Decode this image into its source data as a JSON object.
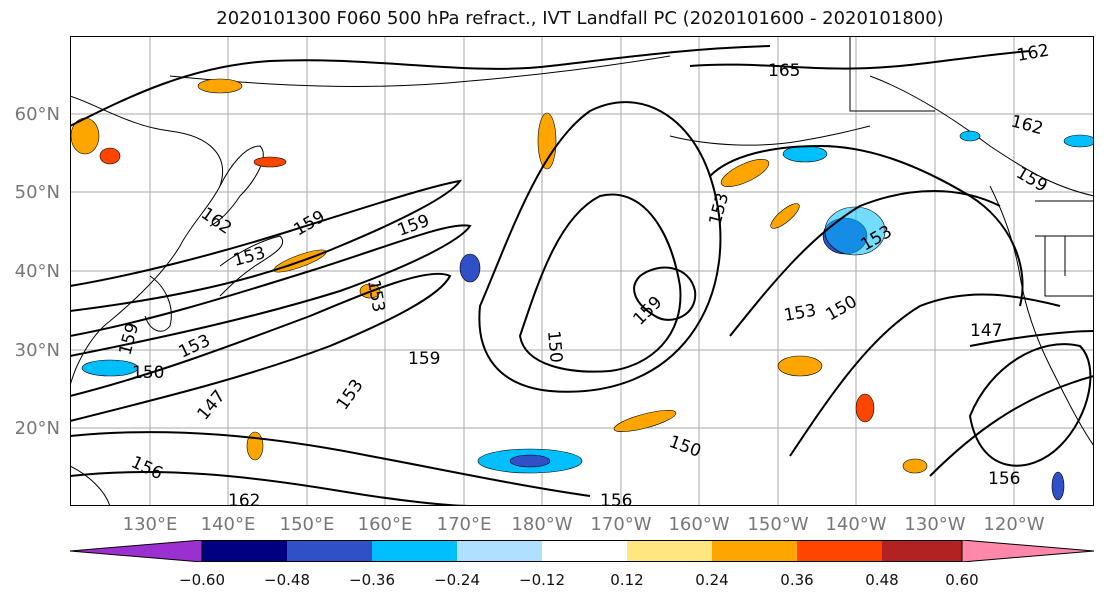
{
  "title": "2020101300 F060 500 hPa refract., IVT Landfall PC (2020101600 - 2020101800)",
  "lat_labels": [
    "60°N",
    "50°N",
    "40°N",
    "30°N",
    "20°N"
  ],
  "lon_labels": [
    "130°E",
    "140°E",
    "150°E",
    "160°E",
    "170°E",
    "180°W",
    "170°W",
    "160°W",
    "150°W",
    "140°W",
    "130°W",
    "120°W"
  ],
  "contour_labels": [
    "165",
    "162",
    "162",
    "162",
    "159",
    "159",
    "159",
    "159",
    "159",
    "159",
    "156",
    "156",
    "156",
    "153",
    "153",
    "153",
    "153",
    "153",
    "153",
    "153",
    "150",
    "150",
    "150",
    "150",
    "147",
    "147",
    "162"
  ],
  "colorbar": {
    "ticks": [
      "−0.60",
      "−0.48",
      "−0.36",
      "−0.24",
      "−0.12",
      "0.12",
      "0.24",
      "0.36",
      "0.48",
      "0.60"
    ],
    "colors": [
      "#9b30d0",
      "#000080",
      "#3050c8",
      "#00bfff",
      "#b0e0ff",
      "#ffffff",
      "#ffe680",
      "#ffa500",
      "#ff4500",
      "#b22222",
      "#ff88aa"
    ]
  }
}
